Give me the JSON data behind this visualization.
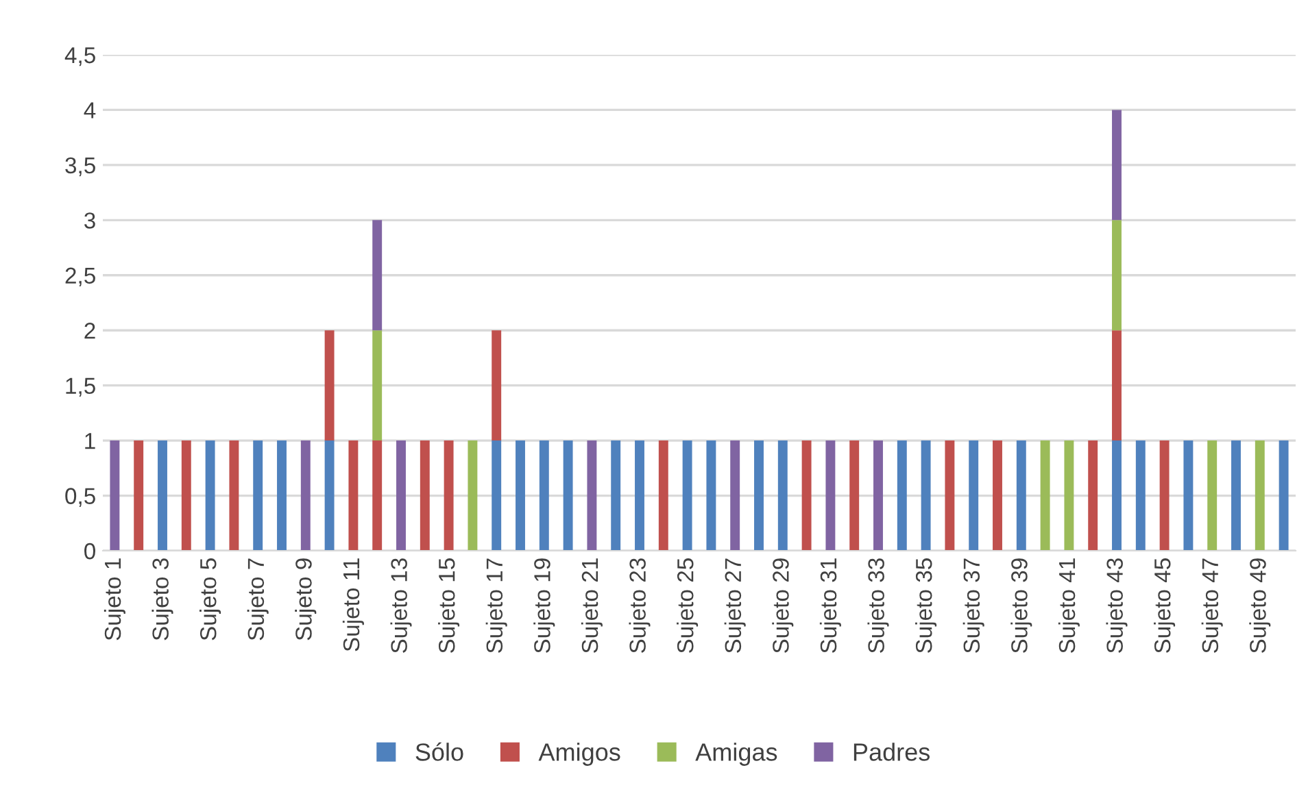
{
  "chart_data": {
    "type": "bar",
    "stacked": true,
    "grid": "y",
    "legend": "bottom",
    "categories": [
      "Sujeto 1",
      null,
      "Sujeto 3",
      null,
      "Sujeto 5",
      null,
      "Sujeto 7",
      null,
      "Sujeto 9",
      null,
      "Sujeto 11",
      null,
      "Sujeto 13",
      null,
      "Sujeto 15",
      null,
      "Sujeto 17",
      null,
      "Sujeto 19",
      null,
      "Sujeto 21",
      null,
      "Sujeto 23",
      null,
      "Sujeto 25",
      null,
      "Sujeto 27",
      null,
      "Sujeto 29",
      null,
      "Sujeto 31",
      null,
      "Sujeto 33",
      null,
      "Sujeto 35",
      null,
      "Sujeto 37",
      null,
      "Sujeto 39",
      null,
      "Sujeto 41",
      null,
      "Sujeto 43",
      null,
      "Sujeto 45",
      null,
      "Sujeto 47",
      null,
      "Sujeto 49",
      null
    ],
    "ylim": [
      0,
      4.5
    ],
    "yticks": [
      0,
      {
        "value": 0.5,
        "label": "0,5"
      },
      1,
      {
        "value": 1.5,
        "label": "1,5"
      },
      2,
      {
        "value": 2.5,
        "label": "2,5"
      },
      3,
      {
        "value": 3.5,
        "label": "3,5"
      },
      4,
      {
        "value": 4.5,
        "label": "4,5"
      }
    ],
    "series": [
      {
        "name": "Sólo",
        "color": "#4f81bd",
        "values": [
          null,
          null,
          1,
          null,
          1,
          null,
          1,
          1,
          null,
          1,
          null,
          null,
          null,
          null,
          null,
          null,
          1,
          1,
          1,
          1,
          null,
          1,
          1,
          null,
          1,
          1,
          null,
          1,
          1,
          null,
          null,
          null,
          null,
          1,
          1,
          null,
          1,
          null,
          1,
          null,
          null,
          null,
          1,
          1,
          null,
          1,
          null,
          1,
          null,
          1
        ]
      },
      {
        "name": "Amigos",
        "color": "#c0504d",
        "values": [
          null,
          1,
          null,
          1,
          null,
          1,
          null,
          null,
          null,
          1,
          1,
          1,
          null,
          1,
          1,
          null,
          1,
          null,
          null,
          null,
          null,
          null,
          null,
          1,
          null,
          null,
          null,
          null,
          null,
          1,
          null,
          1,
          null,
          null,
          null,
          1,
          null,
          1,
          null,
          null,
          null,
          1,
          1,
          null,
          1,
          null,
          null,
          null,
          null,
          null
        ]
      },
      {
        "name": "Amigas",
        "color": "#9bbb59",
        "values": [
          null,
          null,
          null,
          null,
          null,
          null,
          null,
          null,
          null,
          null,
          null,
          1,
          null,
          null,
          null,
          1,
          null,
          null,
          null,
          null,
          null,
          null,
          null,
          null,
          null,
          null,
          null,
          null,
          null,
          null,
          null,
          null,
          null,
          null,
          null,
          null,
          null,
          null,
          null,
          1,
          1,
          null,
          1,
          null,
          null,
          null,
          1,
          null,
          1,
          null
        ]
      },
      {
        "name": "Padres",
        "color": "#8064a2",
        "values": [
          1,
          null,
          null,
          null,
          null,
          null,
          null,
          null,
          1,
          null,
          null,
          1,
          1,
          null,
          null,
          null,
          null,
          null,
          null,
          null,
          1,
          null,
          null,
          null,
          null,
          null,
          1,
          null,
          null,
          null,
          1,
          null,
          1,
          null,
          null,
          null,
          null,
          null,
          null,
          null,
          null,
          null,
          1,
          null,
          null,
          null,
          null,
          null,
          null,
          null
        ]
      }
    ]
  }
}
